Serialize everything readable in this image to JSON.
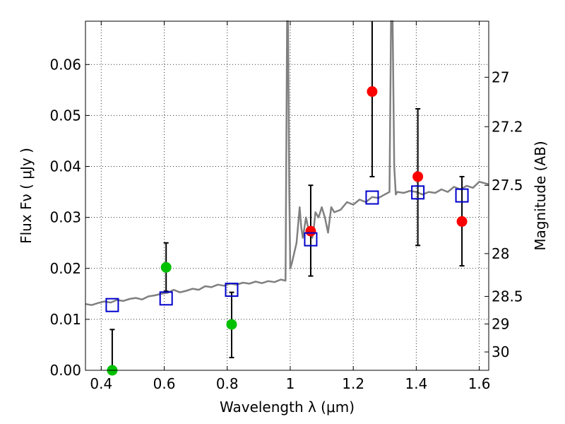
{
  "chart_data": {
    "type": "scatter",
    "xlabel": "Wavelength  λ (μm)",
    "ylabel": "Flux  Fν  ( μJy )",
    "ylabel_right": "Magnitude (AB)",
    "xlim": [
      0.35,
      1.63
    ],
    "ylim": [
      0,
      0.0685
    ],
    "grid": true,
    "x_ticks": [
      0.4,
      0.6,
      0.8,
      1.0,
      1.2,
      1.4,
      1.6
    ],
    "x_tick_labels": [
      "0.4",
      "0.6",
      "0.8",
      "1",
      "1.2",
      "1.4",
      "1.6"
    ],
    "y_ticks": [
      0.0,
      0.01,
      0.02,
      0.03,
      0.04,
      0.05,
      0.06
    ],
    "y_tick_labels": [
      "0.00",
      "0.01",
      "0.02",
      "0.03",
      "0.04",
      "0.05",
      "0.06"
    ],
    "right_ticks": [
      {
        "label": "27",
        "flux": 0.0575
      },
      {
        "label": "27.2",
        "flux": 0.0478
      },
      {
        "label": "27.5",
        "flux": 0.0363
      },
      {
        "label": "28",
        "flux": 0.0229
      },
      {
        "label": "28.5",
        "flux": 0.0145
      },
      {
        "label": "29",
        "flux": 0.0091
      },
      {
        "label": "30",
        "flux": 0.0036
      }
    ],
    "model_spectrum": {
      "color": "#808080",
      "x": [
        0.35,
        0.37,
        0.39,
        0.41,
        0.43,
        0.45,
        0.47,
        0.49,
        0.51,
        0.53,
        0.55,
        0.57,
        0.59,
        0.61,
        0.63,
        0.65,
        0.67,
        0.69,
        0.71,
        0.73,
        0.75,
        0.77,
        0.79,
        0.81,
        0.83,
        0.85,
        0.87,
        0.89,
        0.91,
        0.93,
        0.95,
        0.97,
        0.985,
        0.99,
        0.993,
        0.997,
        1.0,
        1.005,
        1.02,
        1.03,
        1.035,
        1.04,
        1.05,
        1.06,
        1.07,
        1.075,
        1.08,
        1.09,
        1.1,
        1.11,
        1.12,
        1.13,
        1.14,
        1.16,
        1.18,
        1.2,
        1.22,
        1.24,
        1.26,
        1.28,
        1.3,
        1.315,
        1.32,
        1.325,
        1.33,
        1.335,
        1.34,
        1.36,
        1.38,
        1.4,
        1.42,
        1.44,
        1.46,
        1.48,
        1.5,
        1.52,
        1.54,
        1.56,
        1.58,
        1.6,
        1.63
      ],
      "y": [
        0.013,
        0.0128,
        0.0132,
        0.0135,
        0.0133,
        0.0138,
        0.0136,
        0.014,
        0.0142,
        0.0139,
        0.0145,
        0.0147,
        0.015,
        0.0152,
        0.0158,
        0.0153,
        0.0156,
        0.016,
        0.0158,
        0.0165,
        0.0163,
        0.0168,
        0.0166,
        0.017,
        0.0168,
        0.0172,
        0.017,
        0.0174,
        0.0171,
        0.0175,
        0.0173,
        0.0178,
        0.0176,
        0.069,
        0.069,
        0.035,
        0.02,
        0.021,
        0.025,
        0.032,
        0.028,
        0.026,
        0.03,
        0.027,
        0.026,
        0.028,
        0.031,
        0.03,
        0.032,
        0.03,
        0.027,
        0.032,
        0.031,
        0.0315,
        0.033,
        0.0325,
        0.0335,
        0.033,
        0.034,
        0.0338,
        0.0345,
        0.035,
        0.069,
        0.069,
        0.04,
        0.0345,
        0.035,
        0.0348,
        0.0352,
        0.035,
        0.0345,
        0.035,
        0.0348,
        0.0355,
        0.035,
        0.036,
        0.0355,
        0.0362,
        0.0358,
        0.037,
        0.0365
      ]
    },
    "series": [
      {
        "color": "#ff0000",
        "marker": "circle",
        "points": [
          {
            "x": 1.065,
            "y": 0.0273,
            "ylo": 0.0185,
            "yhi": 0.0363
          },
          {
            "x": 1.26,
            "y": 0.0547,
            "ylo": 0.038,
            "yhi": 0.07
          },
          {
            "x": 1.405,
            "y": 0.038,
            "ylo": 0.0245,
            "yhi": 0.0513
          },
          {
            "x": 1.545,
            "y": 0.0292,
            "ylo": 0.0205,
            "yhi": 0.038
          }
        ]
      },
      {
        "color": "#00c000",
        "marker": "circle",
        "points": [
          {
            "x": 0.435,
            "y": 0.0,
            "ylo": 0.0,
            "yhi": 0.008
          },
          {
            "x": 0.606,
            "y": 0.0202,
            "ylo": 0.0155,
            "yhi": 0.025
          },
          {
            "x": 0.814,
            "y": 0.009,
            "ylo": 0.0025,
            "yhi": 0.0153
          }
        ]
      },
      {
        "color": "#0000cc",
        "marker": "open-square",
        "points": [
          {
            "x": 0.435,
            "y": 0.0128
          },
          {
            "x": 0.606,
            "y": 0.0141
          },
          {
            "x": 0.814,
            "y": 0.0158
          },
          {
            "x": 1.065,
            "y": 0.0257
          },
          {
            "x": 1.26,
            "y": 0.0339
          },
          {
            "x": 1.405,
            "y": 0.0349
          },
          {
            "x": 1.545,
            "y": 0.0343
          }
        ]
      }
    ]
  }
}
